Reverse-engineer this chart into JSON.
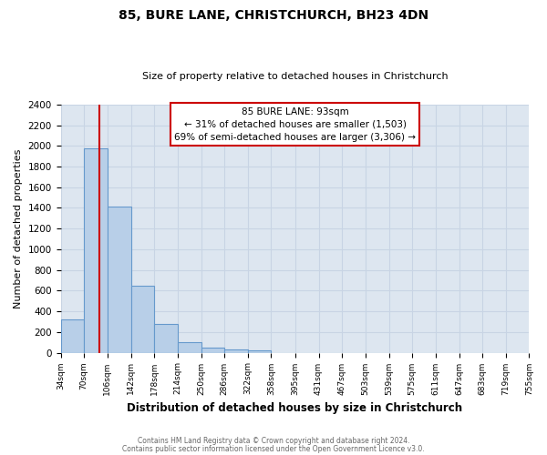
{
  "title": "85, BURE LANE, CHRISTCHURCH, BH23 4DN",
  "subtitle": "Size of property relative to detached houses in Christchurch",
  "xlabel": "Distribution of detached houses by size in Christchurch",
  "ylabel": "Number of detached properties",
  "bin_edges": [
    34,
    70,
    106,
    142,
    178,
    214,
    250,
    286,
    322,
    358,
    395,
    431,
    467,
    503,
    539,
    575,
    611,
    647,
    683,
    719,
    755
  ],
  "bin_counts": [
    325,
    1975,
    1410,
    650,
    275,
    100,
    45,
    30,
    20,
    0,
    0,
    0,
    0,
    0,
    0,
    0,
    0,
    0,
    0,
    0
  ],
  "bar_color": "#b8cfe8",
  "bar_edge_color": "#6699cc",
  "property_line_x": 93,
  "property_line_color": "#cc0000",
  "annotation_line1": "85 BURE LANE: 93sqm",
  "annotation_line2": "← 31% of detached houses are smaller (1,503)",
  "annotation_line3": "69% of semi-detached houses are larger (3,306) →",
  "annotation_box_color": "#ffffff",
  "annotation_box_edge_color": "#cc0000",
  "ylim": [
    0,
    2400
  ],
  "yticks": [
    0,
    200,
    400,
    600,
    800,
    1000,
    1200,
    1400,
    1600,
    1800,
    2000,
    2200,
    2400
  ],
  "grid_color": "#c8d4e4",
  "plot_bg_color": "#dde6f0",
  "figure_bg_color": "#ffffff",
  "footer_line1": "Contains HM Land Registry data © Crown copyright and database right 2024.",
  "footer_line2": "Contains public sector information licensed under the Open Government Licence v3.0.",
  "x_tick_values": [
    34,
    70,
    106,
    142,
    178,
    214,
    250,
    286,
    322,
    358,
    395,
    431,
    467,
    503,
    539,
    575,
    611,
    647,
    683,
    719,
    755
  ],
  "x_tick_labels": [
    "34sqm",
    "70sqm",
    "106sqm",
    "142sqm",
    "178sqm",
    "214sqm",
    "250sqm",
    "286sqm",
    "322sqm",
    "358sqm",
    "395sqm",
    "431sqm",
    "467sqm",
    "503sqm",
    "539sqm",
    "575sqm",
    "611sqm",
    "647sqm",
    "683sqm",
    "719sqm",
    "755sqm"
  ]
}
